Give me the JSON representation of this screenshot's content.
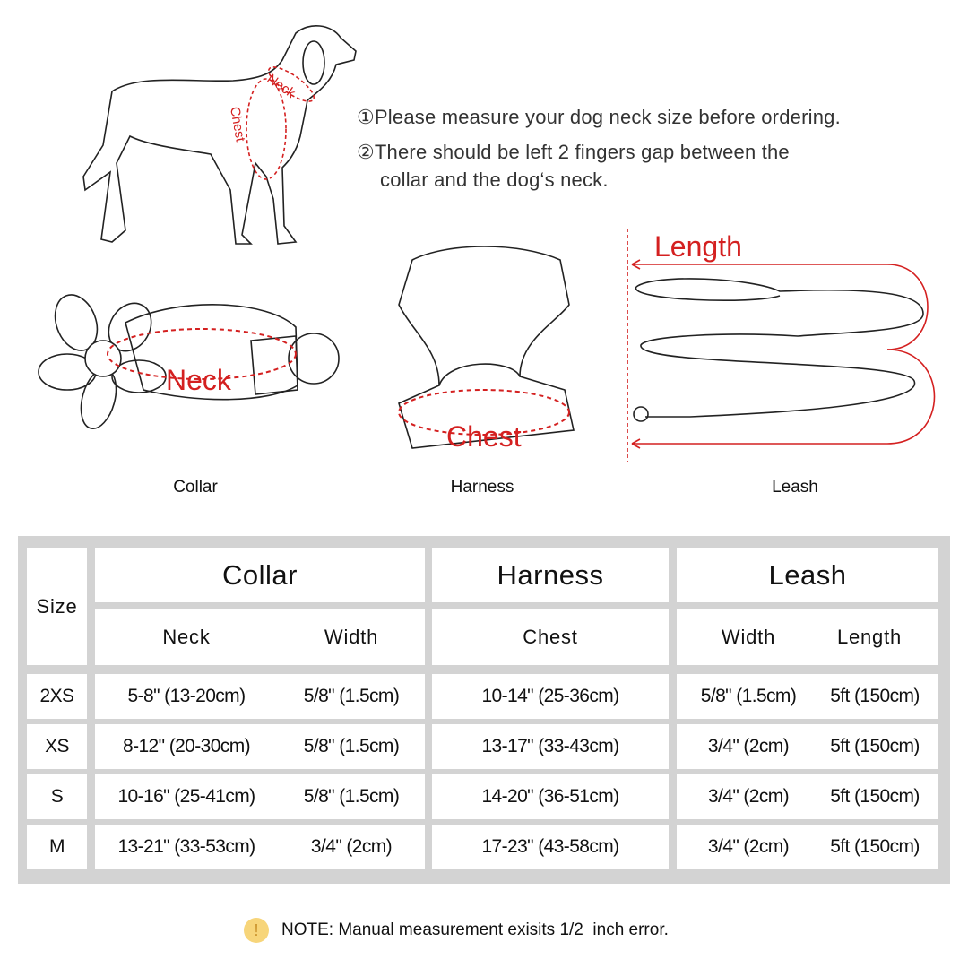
{
  "instructions": [
    "①Please measure your dog neck size before ordering.",
    "②There should be left 2 fingers gap between the",
    "collar and the dog‘s neck."
  ],
  "diagram_labels": {
    "dog_neck": "Neck",
    "dog_chest": "Chest",
    "collar_neck": "Neck",
    "harness_chest": "Chest",
    "leash_length": "Length"
  },
  "captions": {
    "collar": "Collar",
    "harness": "Harness",
    "leash": "Leash"
  },
  "accent_color": "#d42020",
  "table": {
    "size_header": "Size",
    "groups": [
      "Collar",
      "Harness",
      "Leash"
    ],
    "subheaders": [
      "Neck",
      "Width",
      "Chest",
      "Width",
      "Length"
    ],
    "rows": [
      {
        "size": "2XS",
        "cells": [
          "5-8\" (13-20cm)",
          "5/8\" (1.5cm)",
          "10-14\" (25-36cm)",
          "5/8\" (1.5cm)",
          "5ft (150cm)"
        ]
      },
      {
        "size": "XS",
        "cells": [
          "8-12\" (20-30cm)",
          "5/8\" (1.5cm)",
          "13-17\" (33-43cm)",
          "3/4\" (2cm)",
          "5ft (150cm)"
        ]
      },
      {
        "size": "S",
        "cells": [
          "10-16\" (25-41cm)",
          "5/8\" (1.5cm)",
          "14-20\" (36-51cm)",
          "3/4\" (2cm)",
          "5ft (150cm)"
        ]
      },
      {
        "size": "M",
        "cells": [
          "13-21\" (33-53cm)",
          "3/4\" (2cm)",
          "17-23\" (43-58cm)",
          "3/4\" (2cm)",
          "5ft (150cm)"
        ]
      }
    ]
  },
  "note": {
    "icon": "exclamation-icon",
    "text": "NOTE: Manual measurement exisits 1/2  inch error."
  }
}
